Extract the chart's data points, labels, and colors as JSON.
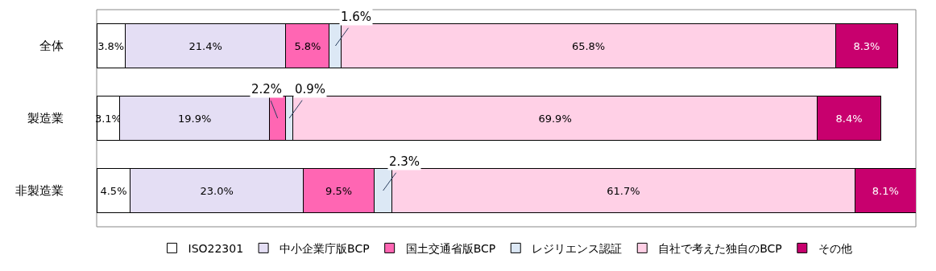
{
  "chart_data": {
    "type": "bar",
    "orientation": "horizontal",
    "stacked": true,
    "categories": [
      "全体",
      "製造業",
      "非製造業"
    ],
    "series": [
      {
        "name": "ISO22301",
        "color": "#ffffff",
        "values": [
          3.8,
          3.1,
          4.5
        ],
        "value_labels": [
          "3.8%",
          "3.1%",
          "4.5%"
        ]
      },
      {
        "name": "中小企業庁版BCP",
        "color": "#e4def4",
        "values": [
          21.4,
          19.9,
          23.0
        ],
        "value_labels": [
          "21.4%",
          "19.9%",
          "23.0%"
        ]
      },
      {
        "name": "国土交通省版BCP",
        "color": "#ff66b3",
        "values": [
          5.8,
          2.2,
          9.5
        ],
        "value_labels": [
          "5.8%",
          "2.2%",
          "9.5%"
        ]
      },
      {
        "name": "レジリエンス認証",
        "color": "#dce8f5",
        "values": [
          1.6,
          0.9,
          2.3
        ],
        "value_labels": [
          "1.6%",
          "0.9%",
          "2.3%"
        ]
      },
      {
        "name": "自社で考えた独自のBCP",
        "color": "#ffd0e6",
        "values": [
          65.8,
          69.9,
          61.7
        ],
        "value_labels": [
          "65.8%",
          "69.9%",
          "61.7%"
        ]
      },
      {
        "name": "その他",
        "color": "#c8006e",
        "values": [
          8.3,
          8.4,
          8.1
        ],
        "value_labels": [
          "8.3%",
          "8.4%",
          "8.1%"
        ]
      }
    ],
    "legend": "bottom"
  }
}
